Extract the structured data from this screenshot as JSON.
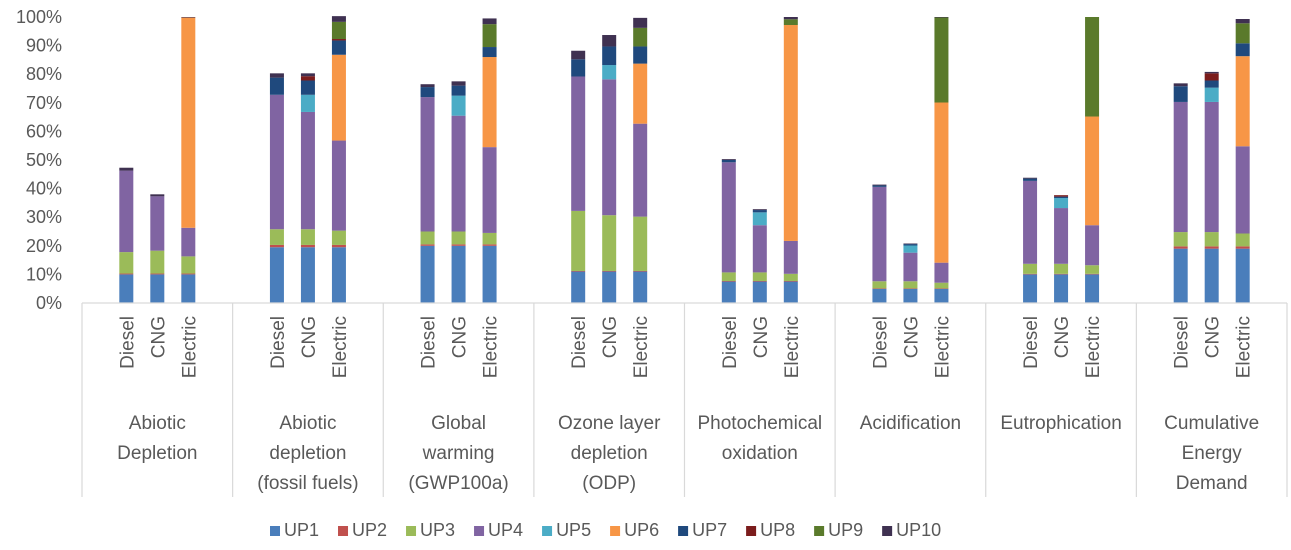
{
  "chart_data": {
    "type": "bar",
    "stacked": true,
    "ylim": [
      0,
      100
    ],
    "y_ticks": [
      "0%",
      "10%",
      "20%",
      "30%",
      "40%",
      "50%",
      "60%",
      "70%",
      "80%",
      "90%",
      "100%"
    ],
    "grid": false,
    "legend_position": "bottom",
    "vehicles": [
      "Diesel",
      "CNG",
      "Electric"
    ],
    "groups": [
      {
        "label": [
          "Abiotic",
          "Depletion"
        ]
      },
      {
        "label": [
          "Abiotic",
          "depletion",
          "(fossil fuels)"
        ]
      },
      {
        "label": [
          "Global",
          "warming",
          "(GWP100a)"
        ]
      },
      {
        "label": [
          "Ozone layer",
          "depletion",
          "(ODP)"
        ]
      },
      {
        "label": [
          "Photochemical",
          "oxidation"
        ]
      },
      {
        "label": [
          "Acidification"
        ]
      },
      {
        "label": [
          "Eutrophication"
        ]
      },
      {
        "label": [
          "Cumulative",
          "Energy",
          "Demand"
        ]
      }
    ],
    "series": [
      {
        "name": "UP1",
        "color": "#4a7ebb"
      },
      {
        "name": "UP2",
        "color": "#c0504d"
      },
      {
        "name": "UP3",
        "color": "#9bbb59"
      },
      {
        "name": "UP4",
        "color": "#8064a2"
      },
      {
        "name": "UP5",
        "color": "#4bacc6"
      },
      {
        "name": "UP6",
        "color": "#f79646"
      },
      {
        "name": "UP7",
        "color": "#1f497d"
      },
      {
        "name": "UP8",
        "color": "#7b1c1c"
      },
      {
        "name": "UP9",
        "color": "#5a7a2b"
      },
      {
        "name": "UP10",
        "color": "#3f3151"
      }
    ],
    "values": [
      [
        [
          10,
          0.3,
          7.5,
          28.5,
          0,
          0,
          0,
          0,
          0,
          1
        ],
        [
          10,
          0.3,
          8,
          19,
          0,
          0,
          0,
          0,
          0,
          0.7
        ],
        [
          10,
          0.3,
          6,
          10,
          0,
          73.5,
          0,
          0,
          0,
          0.2
        ]
      ],
      [
        [
          19.5,
          0.8,
          5.5,
          47,
          0,
          0,
          6,
          0,
          0,
          1.5
        ],
        [
          19.5,
          0.8,
          5.5,
          41,
          6,
          0,
          5,
          1.5,
          0,
          1
        ],
        [
          19.5,
          0.8,
          5,
          31.5,
          0,
          30,
          5,
          0.5,
          6,
          2
        ]
      ],
      [
        [
          20,
          0.5,
          4.5,
          47,
          0,
          0,
          3.5,
          0,
          0,
          1
        ],
        [
          20,
          0.5,
          4.5,
          40.5,
          7,
          0,
          3.5,
          0,
          0,
          1.5
        ],
        [
          20,
          0.5,
          4,
          30,
          0,
          31.5,
          3.5,
          0,
          8,
          2
        ]
      ],
      [
        [
          11,
          0.2,
          21,
          47,
          0,
          0,
          6,
          0,
          0,
          3
        ],
        [
          11,
          0.2,
          19.5,
          47.5,
          5,
          0,
          6.5,
          0,
          0,
          4
        ],
        [
          11,
          0.2,
          19,
          32.5,
          0,
          21,
          6,
          0,
          6.5,
          3.5
        ]
      ],
      [
        [
          7.5,
          0.2,
          3,
          38.5,
          0,
          0,
          0.8,
          0,
          0,
          0.3
        ],
        [
          7.5,
          0.2,
          3,
          16.5,
          4.5,
          0,
          0.8,
          0,
          0,
          0.3
        ],
        [
          7.5,
          0.2,
          2.5,
          11.5,
          0,
          75.5,
          0,
          0,
          2,
          0.8
        ]
      ],
      [
        [
          5,
          0.1,
          2.5,
          33,
          0,
          0,
          0.5,
          0,
          0,
          0.3
        ],
        [
          5,
          0.1,
          2.5,
          10,
          2.5,
          0,
          0.5,
          0,
          0,
          0.2
        ],
        [
          5,
          0.1,
          2,
          7,
          0,
          56,
          0,
          0,
          29.8,
          0.1
        ]
      ],
      [
        [
          10,
          0.2,
          3.5,
          29,
          0,
          0,
          0.8,
          0,
          0,
          0.3
        ],
        [
          10,
          0.2,
          3.5,
          19.5,
          3.5,
          0,
          0.5,
          0.5,
          0,
          0
        ],
        [
          10,
          0.2,
          3,
          14,
          0,
          38,
          0,
          0,
          34.8,
          0
        ]
      ],
      [
        [
          19,
          0.8,
          5,
          45.5,
          0,
          0,
          5.5,
          0,
          0,
          1
        ],
        [
          19,
          0.8,
          5,
          45.5,
          5,
          0,
          2.5,
          2.5,
          0,
          0.5
        ],
        [
          19,
          0.8,
          4.5,
          30.5,
          0,
          31.5,
          4.5,
          0,
          7,
          1.5
        ]
      ]
    ]
  }
}
